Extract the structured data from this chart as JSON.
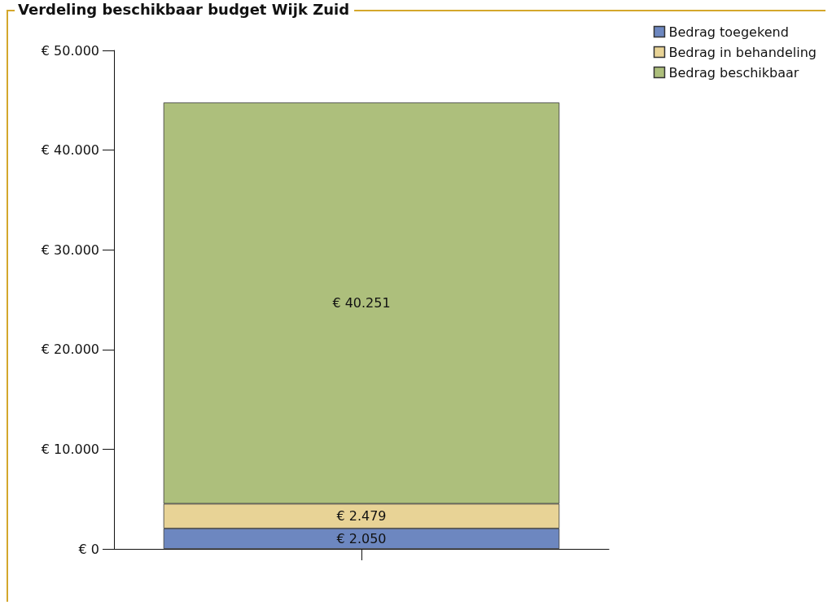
{
  "chart_data": {
    "type": "bar",
    "title": "Verdeling beschikbaar budget Wijk Zuid",
    "categories": [
      null
    ],
    "stacked": true,
    "series": [
      {
        "name": "Bedrag toegekend",
        "color": "#6d87c0",
        "values": [
          2050
        ],
        "value_labels": [
          "€ 2.050"
        ]
      },
      {
        "name": "Bedrag in behandeling",
        "color": "#e8d396",
        "values": [
          2479
        ],
        "value_labels": [
          "€ 2.479"
        ]
      },
      {
        "name": "Bedrag beschikbaar",
        "color": "#adbf7c",
        "values": [
          40251
        ],
        "value_labels": [
          "€ 40.251"
        ]
      }
    ],
    "ylim": [
      0,
      50000
    ],
    "yticks": [
      {
        "value": 0,
        "label": "€ 0"
      },
      {
        "value": 10000,
        "label": "€ 10.000"
      },
      {
        "value": 20000,
        "label": "€ 20.000"
      },
      {
        "value": 30000,
        "label": "€ 30.000"
      },
      {
        "value": 40000,
        "label": "€ 40.000"
      },
      {
        "value": 50000,
        "label": "€ 50.000"
      }
    ],
    "grid": false,
    "legend": "top right"
  }
}
